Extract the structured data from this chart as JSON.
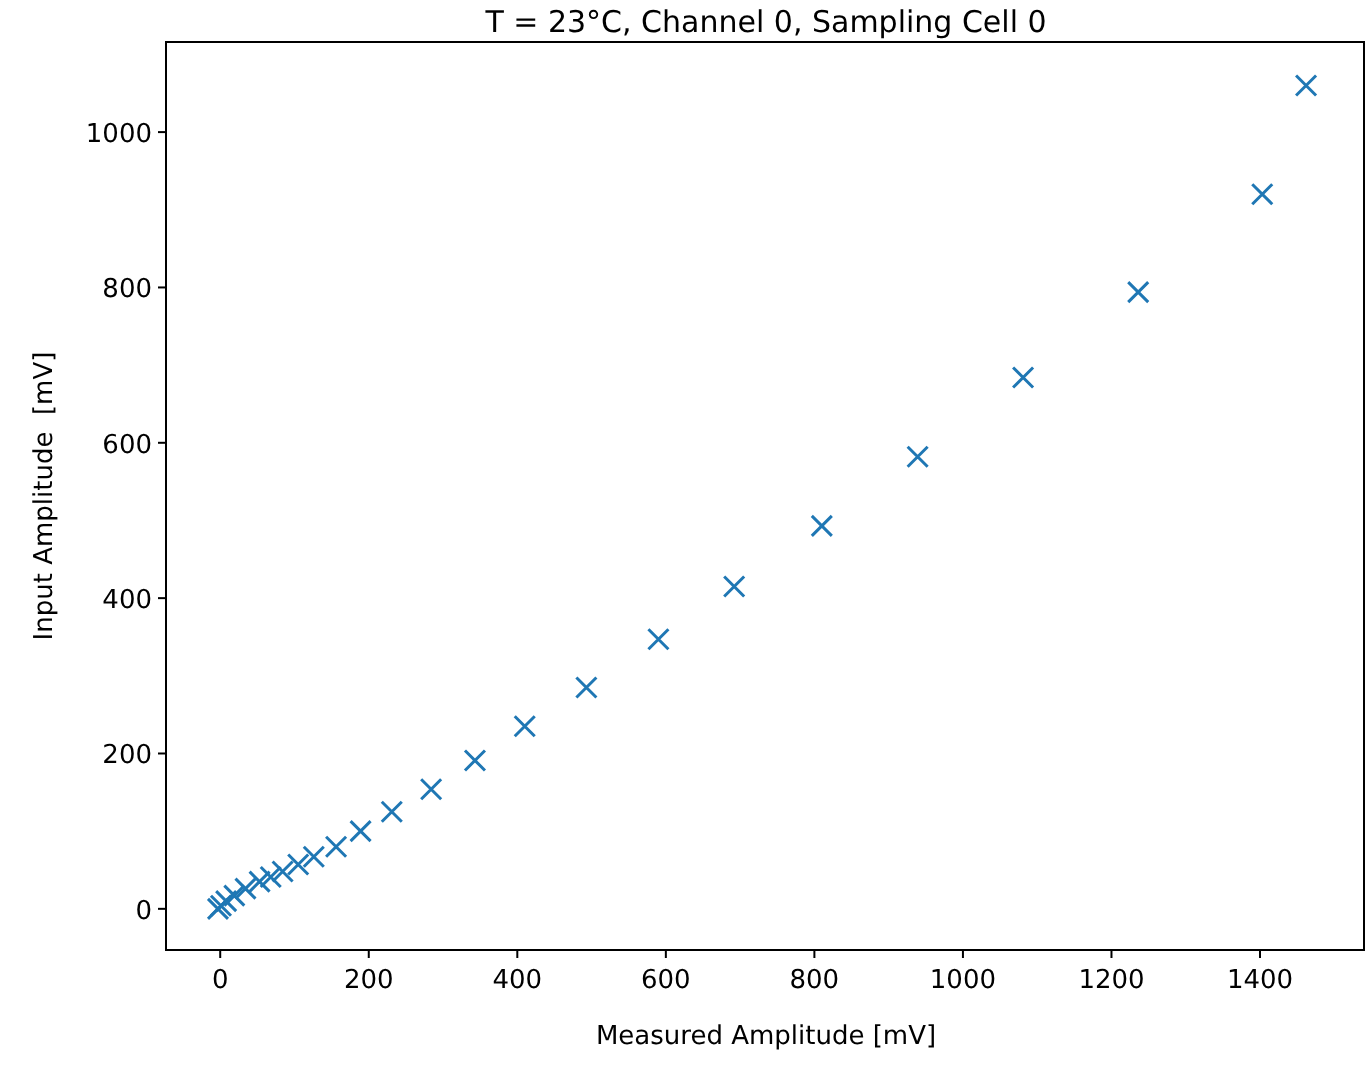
{
  "chart_data": {
    "type": "scatter",
    "title": "T = 23°C, Channel 0, Sampling Cell 0",
    "xlabel": "Measured Amplitude [mV]",
    "ylabel": "Input Amplitude  [mV]",
    "marker": "cross",
    "grid": false,
    "xlim": [
      -73,
      1540
    ],
    "ylim": [
      -53,
      1116
    ],
    "xticks": [
      0,
      200,
      400,
      600,
      800,
      1000,
      1200,
      1400
    ],
    "yticks": [
      0,
      200,
      400,
      600,
      800,
      1000
    ],
    "series": [
      {
        "color": "#1f77b4",
        "x": [
          -3,
          1,
          8,
          19,
          34,
          53,
          68,
          84,
          105,
          126,
          156,
          189,
          231,
          284,
          343,
          410,
          493,
          590,
          692,
          810,
          939,
          1081,
          1236,
          1403,
          1462
        ],
        "values": [
          0,
          4,
          10,
          17,
          26,
          35,
          41,
          48,
          57,
          67,
          80,
          100,
          125,
          154,
          191,
          235,
          285,
          347,
          415,
          493,
          582,
          684,
          794,
          920,
          1060
        ]
      }
    ]
  }
}
